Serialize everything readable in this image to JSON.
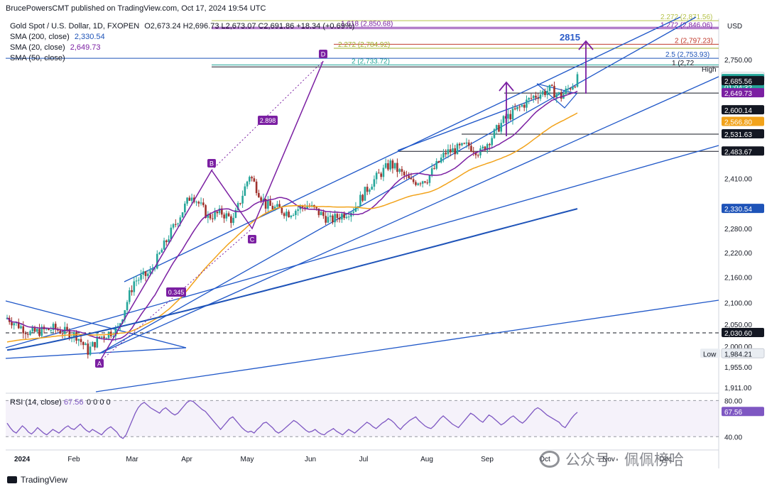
{
  "header": {
    "attribution": "BrucePowersCMT published on TradingView.com, Oct 17, 2024 19:54 UTC"
  },
  "legend": {
    "symbol": "Gold Spot / U.S. Dollar, 1D, FXOPEN",
    "ohlc": "O2,673.24 H2,696.73 L2,673.07 C2,691.86 +18.34 (+0.69%)",
    "sma200": {
      "label": "SMA (200, close)",
      "value": "2,330.54",
      "color": "#1e53b8"
    },
    "sma20": {
      "label": "SMA (20, close)",
      "value": "2,649.73",
      "color": "#7b1fa2"
    },
    "sma50": {
      "label": "SMA (50, close)",
      "value": "",
      "color": "#f2a31b"
    }
  },
  "currency": "USD",
  "brand": {
    "name": "TradingView"
  },
  "watermark": {
    "text": "公众号 · 佩佩榜哈"
  },
  "colors": {
    "up": "#26a69a",
    "down": "#a0312c",
    "trend": "#1f57c8",
    "pattern": "#7b1fa2"
  },
  "chart_data": {
    "type": "candlestick",
    "title": "Gold Spot / U.S. Dollar, 1D, FXOPEN",
    "x_axis": {
      "labels": [
        "2024",
        "Feb",
        "Mar",
        "Apr",
        "May",
        "Jun",
        "Jul",
        "Aug",
        "Sep",
        "Oct",
        "Nov",
        "Dec"
      ]
    },
    "y_axis": {
      "scale": "log",
      "range": [
        1900,
        2900
      ],
      "ticks": [
        2750,
        2410,
        2280,
        2220,
        2160,
        2100,
        2050,
        2000,
        1955,
        1911
      ]
    },
    "price_labels": [
      {
        "label": "",
        "value": 2696.73,
        "color": "#ffffff"
      },
      {
        "label": "",
        "value": 2691.86,
        "color": "#26a69a",
        "sub": "01:04:32"
      },
      {
        "label": "",
        "value": 2685.56,
        "color": "#131722"
      },
      {
        "label": "",
        "value": 2649.73,
        "color": "#7b1fa2"
      },
      {
        "label": "",
        "value": 2600.14,
        "color": "#131722"
      },
      {
        "label": "",
        "value": 2566.8,
        "color": "#f2a31b"
      },
      {
        "label": "",
        "value": 2531.63,
        "color": "#131722"
      },
      {
        "label": "",
        "value": 2483.67,
        "color": "#131722"
      },
      {
        "label": "",
        "value": 2330.54,
        "color": "#1e53b8"
      },
      {
        "label": "",
        "value": 2030.6,
        "color": "#131722"
      },
      {
        "label": "Low",
        "value": 1984.21,
        "color": "#e9edf2"
      }
    ],
    "fib_levels": [
      {
        "label": "2.272 (2,871.56)",
        "value": 2871.56,
        "color": "#b5c24a"
      },
      {
        "label": "1.618 (2,850.68)",
        "value": 2850.68,
        "color": "#7b1fa2"
      },
      {
        "label": "1.272 (2,846.06)",
        "value": 2846.06,
        "color": "#7b1fa2"
      },
      {
        "label": "2 (2,797.23)",
        "value": 2797.23,
        "color": "#c0392b"
      },
      {
        "label": "2.272 (2,784.92)",
        "value": 2784.92,
        "color": "#9fad2a"
      },
      {
        "label": "2.5 (2,753.93)",
        "value": 2753.93,
        "color": "#1e53b8"
      },
      {
        "label": "2 (2,733.72)",
        "value": 2733.72,
        "color": "#26a69a"
      },
      {
        "label": "1 (2,72",
        "value": 2728.0,
        "color": "#131722"
      }
    ],
    "annotations": {
      "target": "2815",
      "high_label": "High",
      "pattern_points": [
        "A",
        "B",
        "C",
        "D"
      ],
      "ratios": [
        "2.898",
        "0.345"
      ]
    },
    "rsi": {
      "label": "RSI (14, close)",
      "value": "67.56",
      "params": "0 0 0 0",
      "ticks": [
        80.0,
        40.0
      ],
      "values": [
        55,
        50,
        46,
        44,
        48,
        52,
        49,
        45,
        43,
        46,
        50,
        47,
        44,
        42,
        45,
        48,
        46,
        44,
        47,
        50,
        52,
        49,
        48,
        51,
        54,
        50,
        47,
        45,
        48,
        46,
        44,
        42,
        46,
        49,
        51,
        48,
        45,
        40,
        38,
        42,
        50,
        58,
        66,
        72,
        76,
        78,
        75,
        72,
        70,
        68,
        66,
        70,
        72,
        69,
        66,
        64,
        66,
        70,
        74,
        78,
        80,
        79,
        76,
        73,
        70,
        68,
        64,
        60,
        56,
        52,
        48,
        52,
        56,
        60,
        62,
        58,
        54,
        50,
        47,
        45,
        46,
        44,
        48,
        51,
        55,
        56,
        53,
        50,
        46,
        44,
        46,
        49,
        52,
        55,
        58,
        56,
        53,
        50,
        47,
        45,
        46,
        48,
        45,
        43,
        42,
        45,
        47,
        49,
        46,
        44,
        42,
        45,
        48,
        46,
        44,
        47,
        50,
        53,
        56,
        54,
        51,
        49,
        52,
        55,
        57,
        60,
        58,
        55,
        51,
        48,
        52,
        55,
        58,
        60,
        62,
        58,
        55,
        52,
        50,
        49,
        52,
        56,
        60,
        63,
        60,
        57,
        54,
        52,
        50,
        54,
        58,
        62,
        66,
        64,
        61,
        58,
        56,
        60,
        64,
        62,
        59,
        56,
        53,
        55,
        58,
        61,
        63,
        60,
        57,
        55,
        58,
        62,
        66,
        70,
        72,
        70,
        67,
        64,
        62,
        60,
        58,
        56,
        52,
        50,
        55,
        60,
        64,
        67
      ]
    }
  }
}
